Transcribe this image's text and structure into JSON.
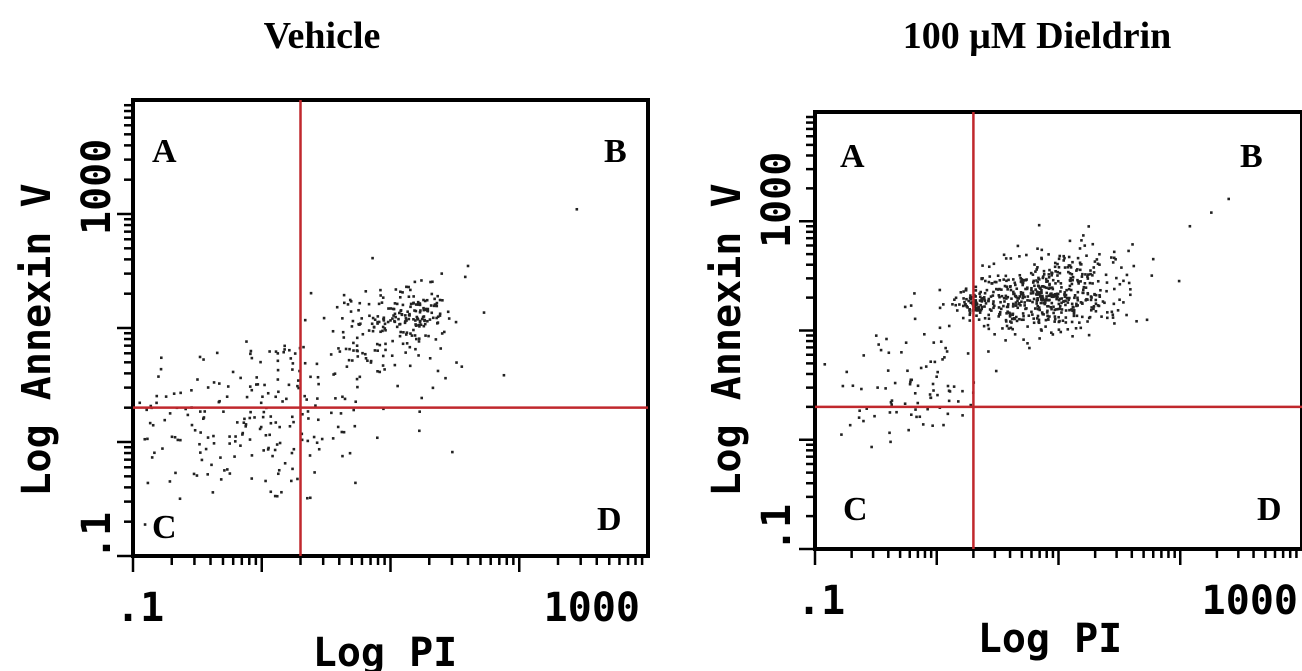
{
  "chart_data": [
    {
      "type": "scatter",
      "title": "Vehicle",
      "xlabel": "Log PI",
      "ylabel": "Log Annexin V",
      "xscale": "log",
      "yscale": "log",
      "xlim": [
        0.1,
        1000
      ],
      "ylim": [
        0.1,
        1000
      ],
      "x_tick_labels": [
        ".1",
        "1000"
      ],
      "y_tick_labels": [
        ".1",
        "1000"
      ],
      "quadrant_gates": {
        "x": 2,
        "y": 2,
        "color": "#c0282d"
      },
      "quadrant_labels": [
        "A",
        "B",
        "C",
        "D"
      ],
      "clusters": [
        {
          "center": [
            0.9,
            1.6
          ],
          "spread": [
            0.55,
            0.4
          ],
          "count": 220
        },
        {
          "center": [
            12,
            12
          ],
          "spread": [
            0.18,
            0.14
          ],
          "count": 120
        },
        {
          "center": [
            8,
            8
          ],
          "spread": [
            0.35,
            0.28
          ],
          "count": 90
        },
        {
          "center": [
            18,
            14
          ],
          "spread": [
            0.06,
            0.05
          ],
          "count": 30
        }
      ],
      "outliers": [
        [
          280,
          110
        ],
        [
          40,
          35
        ],
        [
          25,
          30
        ]
      ]
    },
    {
      "type": "scatter",
      "title": "100 μM Dieldrin",
      "xlabel": "Log PI",
      "ylabel": "Log Annexin V",
      "xscale": "log",
      "yscale": "log",
      "xlim": [
        0.1,
        1000
      ],
      "ylim": [
        0.1,
        1000
      ],
      "x_tick_labels": [
        ".1",
        "1000"
      ],
      "y_tick_labels": [
        ".1",
        "1000"
      ],
      "quadrant_gates": {
        "x": 2,
        "y": 2,
        "color": "#c0282d"
      },
      "quadrant_labels": [
        "A",
        "B",
        "C",
        "D"
      ],
      "clusters": [
        {
          "center": [
            6,
            18
          ],
          "spread": [
            0.3,
            0.14
          ],
          "count": 380
        },
        {
          "center": [
            2,
            18
          ],
          "spread": [
            0.07,
            0.06
          ],
          "count": 70
        },
        {
          "center": [
            12,
            30
          ],
          "spread": [
            0.3,
            0.2
          ],
          "count": 160
        },
        {
          "center": [
            0.6,
            3
          ],
          "spread": [
            0.4,
            0.3
          ],
          "count": 90
        }
      ],
      "outliers": [
        [
          250,
          160
        ],
        [
          180,
          120
        ],
        [
          120,
          90
        ],
        [
          60,
          45
        ]
      ]
    }
  ]
}
